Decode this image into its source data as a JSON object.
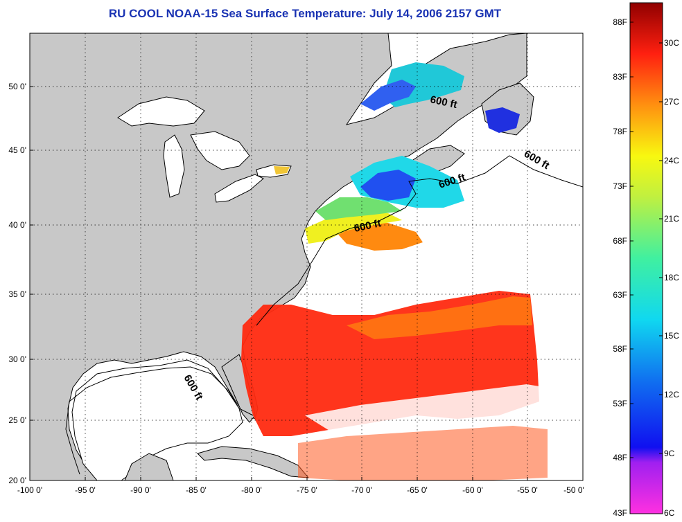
{
  "title": "RU COOL  NOAA-15  Sea Surface Temperature:  July 14, 2006 2157 GMT",
  "map": {
    "lon_ticks": [
      "-100 0'",
      "-95 0'",
      "-90 0'",
      "-85 0'",
      "-80 0'",
      "-75 0'",
      "-70 0'",
      "-65 0'",
      "-60 0'",
      "-55 0'",
      "-50 0'"
    ],
    "lat_ticks": [
      "50 0'",
      "45 0'",
      "40 0'",
      "35 0'",
      "30 0'",
      "25 0'",
      "20 0'"
    ],
    "contour_labels": [
      "600 ft",
      "600 ft",
      "600 ft",
      "600 ft",
      "600 ft"
    ],
    "colors": {
      "land": "#c8c8c8",
      "ocean_nodata": "#ffffff",
      "warm": "#ff2a10",
      "orange": "#ff7a10",
      "yellow": "#f0f020",
      "green": "#70e070",
      "cyan": "#20d8e8",
      "blue": "#2050f0"
    }
  },
  "colorbar": {
    "fahrenheit_labels": [
      "88F",
      "83F",
      "78F",
      "73F",
      "68F",
      "63F",
      "58F",
      "53F",
      "48F",
      "43F"
    ],
    "celsius_labels": [
      "30C",
      "27C",
      "24C",
      "21C",
      "18C",
      "15C",
      "12C",
      "9C",
      "6C"
    ]
  }
}
